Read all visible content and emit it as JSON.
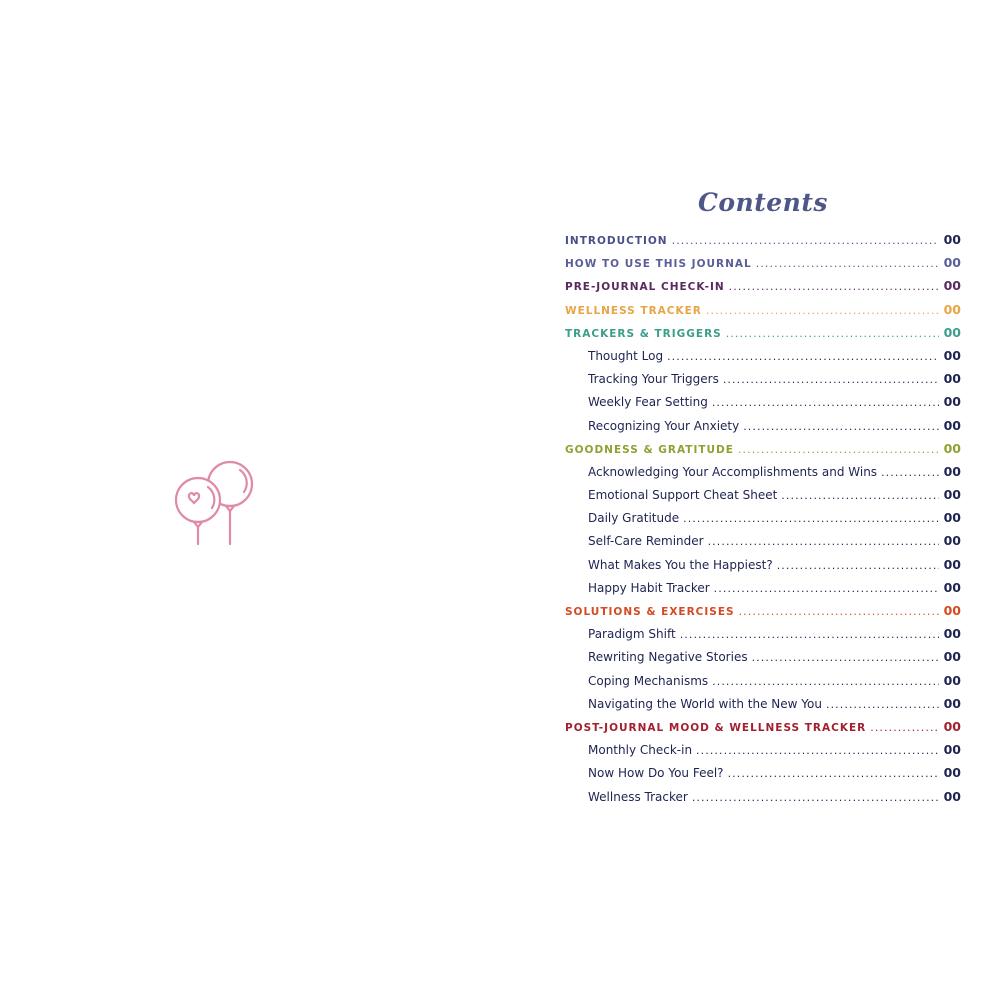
{
  "title": "Contents",
  "icon": "balloons-heart-icon",
  "colors": {
    "text": "#1e2350",
    "icon": "#e08aaa"
  },
  "entries": [
    {
      "label": "INTRODUCTION",
      "page": "00",
      "level": "section",
      "color": "#4a4f8a",
      "num_color": "#1e2350"
    },
    {
      "label": "HOW TO USE THIS JOURNAL",
      "page": "00",
      "level": "section",
      "color": "#5a5e98",
      "num_color": "#5a5e98"
    },
    {
      "label": "PRE-JOURNAL CHECK-IN",
      "page": "00",
      "level": "section",
      "color": "#5a2a5e",
      "num_color": "#5a2a5e"
    },
    {
      "label": "WELLNESS TRACKER",
      "page": "00",
      "level": "section",
      "color": "#e8a445",
      "num_color": "#e8a445"
    },
    {
      "label": "TRACKERS & TRIGGERS",
      "page": "00",
      "level": "section",
      "color": "#3a9e8a",
      "num_color": "#3a9e8a"
    },
    {
      "label": "Thought Log",
      "page": "00",
      "level": "sub"
    },
    {
      "label": "Tracking Your Triggers",
      "page": "00",
      "level": "sub"
    },
    {
      "label": "Weekly Fear Setting",
      "page": "00",
      "level": "sub"
    },
    {
      "label": "Recognizing Your Anxiety",
      "page": "00",
      "level": "sub"
    },
    {
      "label": "GOODNESS & GRATITUDE",
      "page": "00",
      "level": "section",
      "color": "#8ea232",
      "num_color": "#8ea232"
    },
    {
      "label": "Acknowledging Your Accomplishments and Wins",
      "page": "00",
      "level": "sub"
    },
    {
      "label": "Emotional Support Cheat Sheet",
      "page": "00",
      "level": "sub"
    },
    {
      "label": "Daily Gratitude",
      "page": "00",
      "level": "sub"
    },
    {
      "label": "Self-Care Reminder",
      "page": "00",
      "level": "sub"
    },
    {
      "label": "What Makes You the Happiest?",
      "page": "00",
      "level": "sub"
    },
    {
      "label": "Happy Habit Tracker",
      "page": "00",
      "level": "sub"
    },
    {
      "label": "SOLUTIONS & EXERCISES",
      "page": "00",
      "level": "section",
      "color": "#d44a22",
      "num_color": "#d44a22"
    },
    {
      "label": "Paradigm Shift",
      "page": "00",
      "level": "sub"
    },
    {
      "label": "Rewriting Negative Stories",
      "page": "00",
      "level": "sub"
    },
    {
      "label": "Coping Mechanisms",
      "page": "00",
      "level": "sub"
    },
    {
      "label": "Navigating the World with the New You",
      "page": "00",
      "level": "sub"
    },
    {
      "label": "POST-JOURNAL MOOD & WELLNESS TRACKER",
      "page": "00",
      "level": "section",
      "color": "#a3202e",
      "num_color": "#a3202e"
    },
    {
      "label": "Monthly Check-in",
      "page": "00",
      "level": "sub"
    },
    {
      "label": "Now How Do You Feel?",
      "page": "00",
      "level": "sub"
    },
    {
      "label": "Wellness Tracker",
      "page": "00",
      "level": "sub"
    }
  ]
}
